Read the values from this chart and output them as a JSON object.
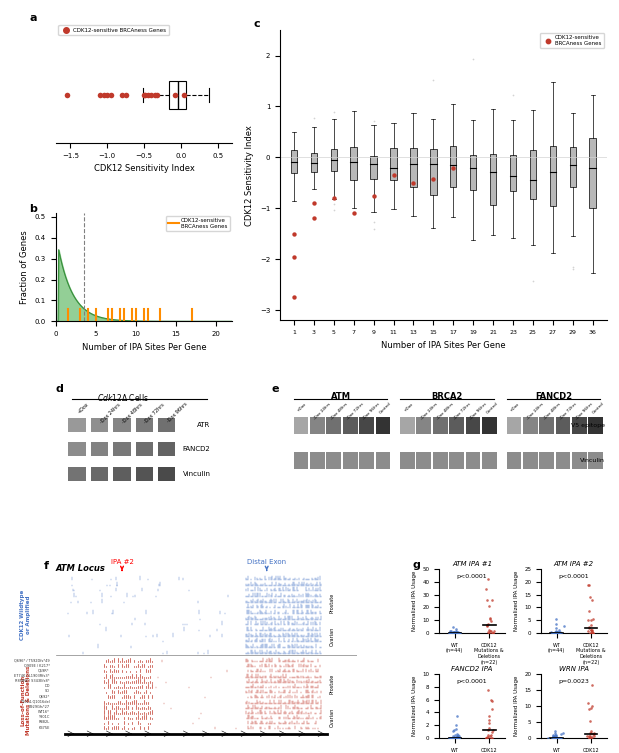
{
  "panel_a": {
    "title": "a",
    "xlabel": "CDK12 Sensitivity Index",
    "legend_label": "CDK12-sensitive BRCAness Genes",
    "brca_dots": [
      -1.55,
      -1.1,
      -1.05,
      -1.0,
      -0.95,
      -0.8,
      -0.75,
      -0.5,
      -0.48,
      -0.45,
      -0.4,
      -0.35,
      -0.32,
      -0.08,
      0.05
    ],
    "xlim": [
      -1.7,
      0.7
    ]
  },
  "panel_b": {
    "title": "b",
    "xlabel": "Number of IPA Sites Per Gene",
    "ylabel": "Fraction of Genes",
    "legend_label": "CDK12-sensitive\nBRCAness Genes",
    "brca_ticks": [
      1.5,
      3.0,
      4.0,
      5.0,
      6.5,
      7.0,
      8.0,
      8.5,
      9.5,
      10.0,
      11.0,
      11.5,
      13.0,
      17.0
    ],
    "dashed_x": 3.5,
    "xlim": [
      0,
      22
    ],
    "ylim": [
      0,
      0.52
    ]
  },
  "panel_c": {
    "title": "c",
    "xlabel": "Number of IPA Sites Per Gene",
    "ylabel": "CDK12 Sensitivity Index",
    "x_ticks": [
      1,
      3,
      5,
      7,
      9,
      11,
      13,
      15,
      17,
      19,
      21,
      23,
      25,
      27,
      29,
      36
    ],
    "brca_points_x": [
      1,
      1,
      1,
      2,
      2,
      3,
      4,
      5,
      6,
      7,
      8,
      9
    ],
    "brca_points_y": [
      -2.75,
      -1.95,
      -1.5,
      -1.2,
      -0.9,
      -0.8,
      -1.1,
      -0.75,
      -0.35,
      -0.5,
      -0.42,
      -0.2
    ],
    "ylim": [
      -3.2,
      2.5
    ]
  },
  "panel_d": {
    "title": "d",
    "subtitle": "Cdk12Δ Cells",
    "labels": [
      "+Dox",
      "-Dox 24hrs",
      "-Dox 48hrs",
      "-Dox 72hrs",
      "-Dox 96hrs"
    ],
    "protein_labels": [
      "ATR",
      "FANCD2",
      "Vinculin"
    ]
  },
  "panel_e": {
    "title": "e",
    "groups": [
      "ATM",
      "BRCA2",
      "FANCD2"
    ],
    "labels": [
      "+Dox",
      "-Dox 24hrs",
      "-Dox 48hrs",
      "-Dox 72hrs",
      "-Dox 96hrs",
      "Control"
    ],
    "protein_labels": [
      "V5 epitope",
      "Vinculin"
    ]
  },
  "panel_f": {
    "title": "f",
    "atm_label": "ATM Locus",
    "ipa_label": "IPA #2",
    "distal_label": "Distal Exon",
    "blue_color": "#4472C4",
    "red_color": "#C0392B",
    "lof_labels": [
      "Q696* / T592Dfs*49",
      "Q909E / K217*",
      "Q59R*",
      "E774K / L1903Rfs3*",
      "R858W / S343Efs8*",
      "DD",
      "SD",
      "Q692*",
      "T1014-Q1016del",
      "E929Gfs*27",
      "WT16*",
      "Y901C",
      "R882L",
      "K375E"
    ]
  },
  "panel_g": {
    "title": "g",
    "plots": [
      {
        "title": "ATM IPA #1",
        "pval": "p<0.0001",
        "ylim": [
          0,
          50
        ],
        "yticks": [
          0,
          10,
          20,
          30,
          40,
          50
        ]
      },
      {
        "title": "ATM IPA #2",
        "pval": "p<0.0001",
        "ylim": [
          0,
          25
        ],
        "yticks": [
          0,
          5,
          10,
          15,
          20,
          25
        ]
      },
      {
        "title": "FANCD2 IPA",
        "pval": "p<0.0001",
        "ylim": [
          0,
          10
        ],
        "yticks": [
          0,
          2,
          4,
          6,
          8,
          10
        ]
      },
      {
        "title": "WRN IPA",
        "pval": "p=0.0023",
        "ylim": [
          0,
          20
        ],
        "yticks": [
          0,
          5,
          10,
          15,
          20
        ]
      }
    ],
    "wt_n": 44,
    "mut_n": 22,
    "blue_color": "#4472C4",
    "red_color": "#C0392B"
  }
}
